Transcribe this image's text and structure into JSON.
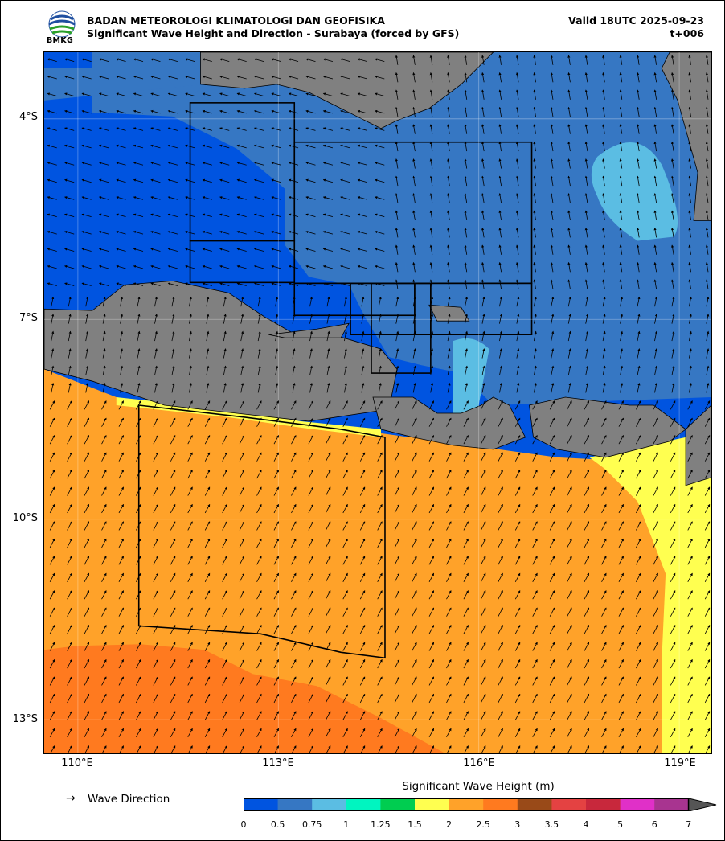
{
  "header": {
    "organization": "BADAN METEOROLOGI KLIMATOLOGI DAN GEOFISIKA",
    "product": "Significant Wave Height and Direction - Surabaya (forced by GFS)",
    "valid": "Valid 18UTC 2025-09-23",
    "step": "t+006"
  },
  "logo": {
    "text": "BMKG"
  },
  "map": {
    "lat_labels": [
      "4°S",
      "7°S",
      "10°S",
      "13°S"
    ],
    "lon_labels": [
      "110°E",
      "113°E",
      "116°E",
      "119°E"
    ],
    "colors": {
      "land": "#808080",
      "c0": "#0054e0",
      "c05": "#3677c3",
      "c075": "#5bbde3",
      "c1": "#00f5c0",
      "c125": "#00cd50",
      "c15": "#ffff50",
      "c2": "#ffa229",
      "c25": "#ff7a1f"
    }
  },
  "legend": {
    "arrow_glyph": "→",
    "arrow_label": "Wave Direction",
    "colorbar_title": "Significant Wave Height (m)",
    "ticks": [
      "0",
      "0.5",
      "0.75",
      "1",
      "1.25",
      "1.5",
      "2",
      "2.5",
      "3",
      "3.5",
      "4",
      "5",
      "6",
      "7"
    ],
    "colors": [
      "#0054e0",
      "#3677c3",
      "#5bbde3",
      "#00f5c0",
      "#00cd50",
      "#ffff50",
      "#ffa229",
      "#ff7a1f",
      "#994a18",
      "#e44242",
      "#c8283c",
      "#e030c8",
      "#a83490"
    ]
  }
}
